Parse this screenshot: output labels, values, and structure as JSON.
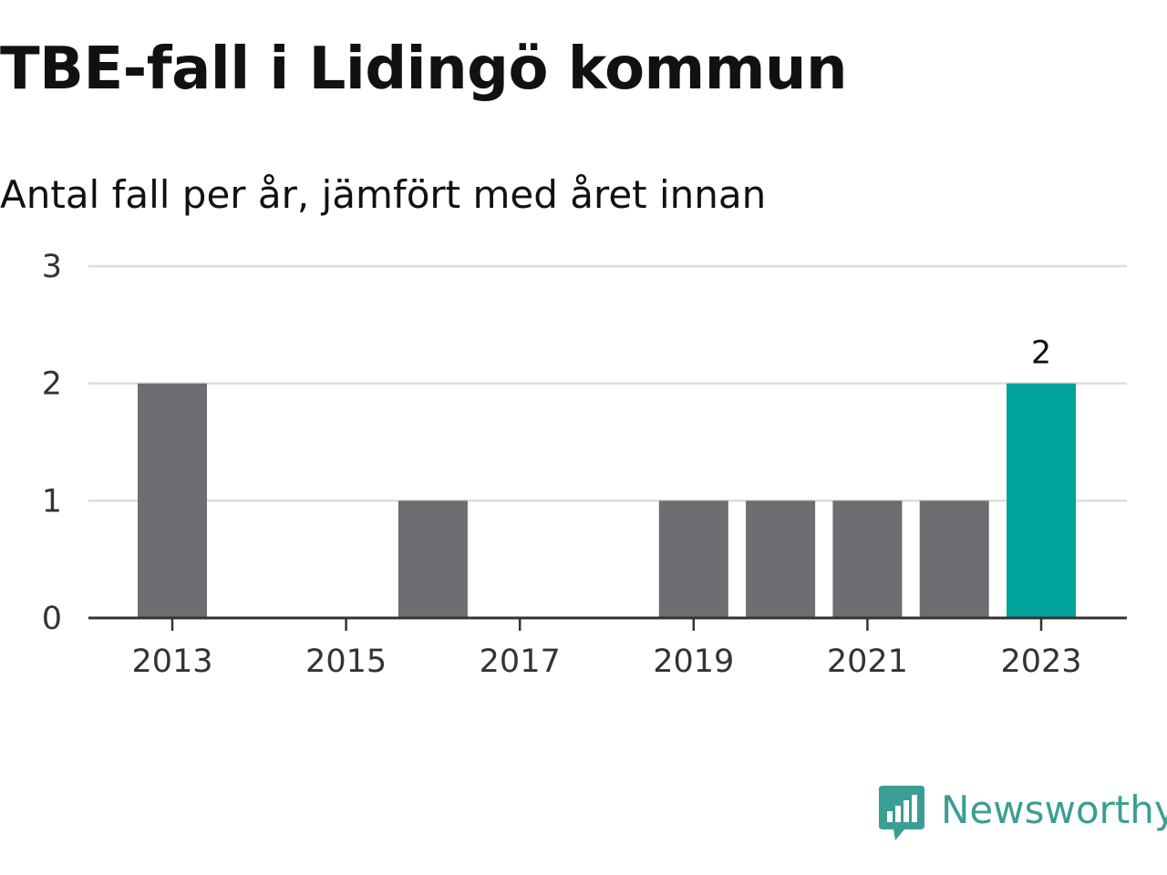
{
  "title": "TBE-fall i Lidingö kommun",
  "subtitle": "Antal fall per år, jämfört med året innan",
  "brand": {
    "name": "Newsworthy",
    "icon": "newsworthy-logo-icon",
    "color": "#3a9e94"
  },
  "colors": {
    "bar": "#6e6d72",
    "highlight": "#00a39a",
    "grid": "#dddddd",
    "axis": "#333333"
  },
  "chart_data": {
    "type": "bar",
    "categories": [
      "2013",
      "2014",
      "2015",
      "2016",
      "2017",
      "2018",
      "2019",
      "2020",
      "2021",
      "2022",
      "2023"
    ],
    "values": [
      2,
      0,
      0,
      1,
      0,
      0,
      1,
      1,
      1,
      1,
      2
    ],
    "highlight_index": 10,
    "data_labels": [
      {
        "index": 10,
        "text": "2"
      }
    ],
    "x_tick_labels": [
      "2013",
      "2015",
      "2017",
      "2019",
      "2021",
      "2023"
    ],
    "y_ticks": [
      "0",
      "1",
      "2",
      "3"
    ],
    "ylim": [
      0,
      3
    ],
    "grid": true,
    "legend": "none",
    "xlabel": "",
    "ylabel": ""
  }
}
